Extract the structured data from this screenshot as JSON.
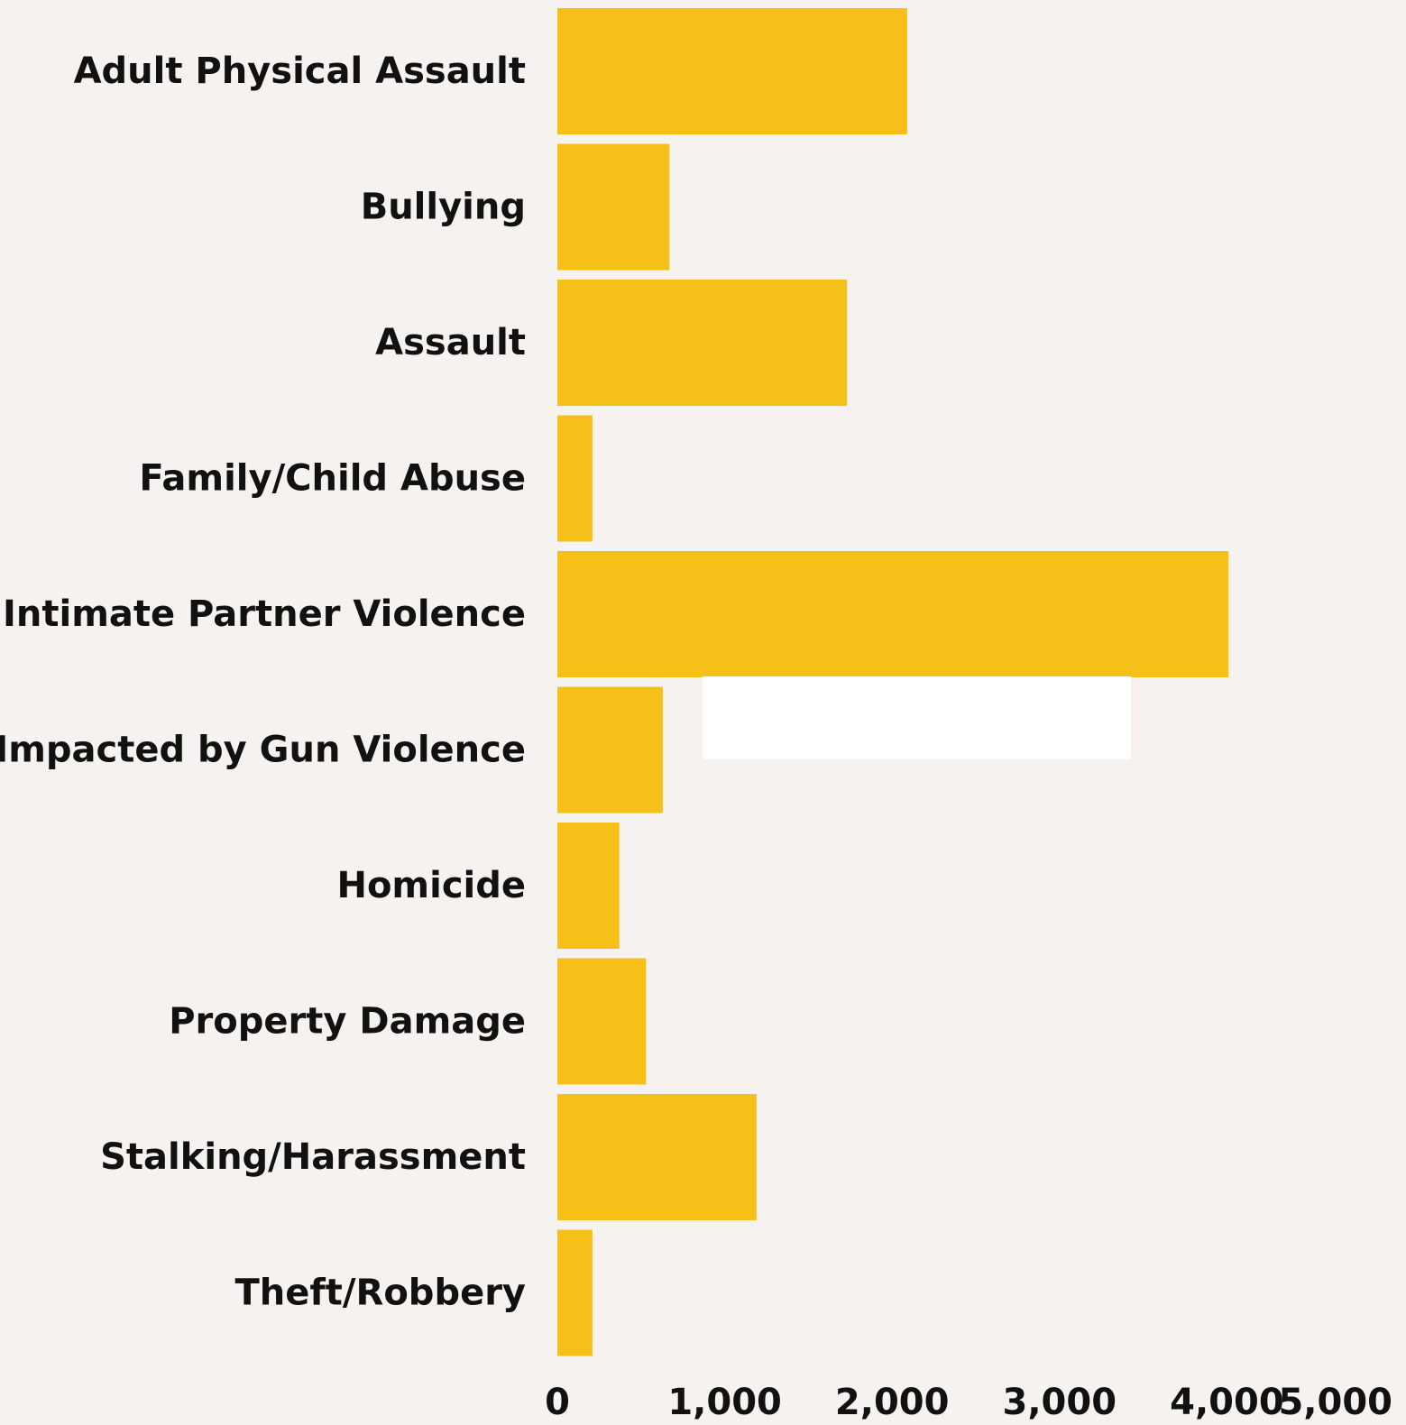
{
  "chart_data": {
    "type": "bar",
    "orientation": "horizontal",
    "categories": [
      "Adult Physical Assault",
      "Bullying",
      "Assault",
      "Family/Child Abuse",
      "Intimate Partner Violence",
      "Impacted by Gun Violence",
      "Homicide",
      "Property Damage",
      "Stalking/Harassment",
      "Theft/Robbery"
    ],
    "values": [
      2090,
      670,
      1730,
      210,
      4010,
      630,
      370,
      530,
      1190,
      210
    ],
    "xlim": [
      0,
      5000
    ],
    "xticks": [
      0,
      1000,
      2000,
      3000,
      4000,
      5000
    ],
    "xtick_labels": [
      "0",
      "1,000",
      "2,000",
      "3,000",
      "4,000",
      "5,000"
    ],
    "title": "",
    "xlabel": "",
    "ylabel": "",
    "grid": false,
    "legend": "none",
    "colors": {
      "bar": "#f7c019",
      "background": "#f5f2ef",
      "text": "#111111",
      "overlay": "#ffffff"
    }
  }
}
